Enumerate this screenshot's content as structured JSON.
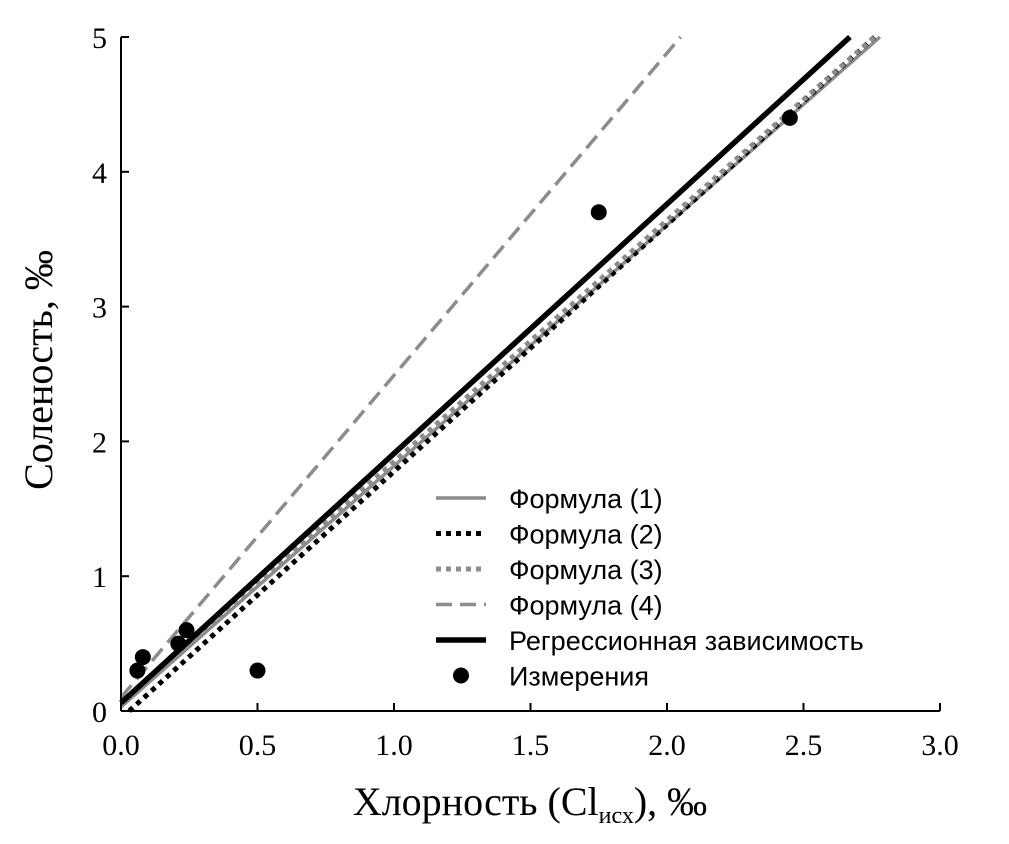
{
  "chart_data": {
    "type": "scatter",
    "xlabel_main": "Хлорность (Cl",
    "xlabel_sub": "исх",
    "xlabel_tail": "), ‰",
    "ylabel": "Соленость, ‰",
    "xlim": [
      0,
      3
    ],
    "ylim": [
      0,
      5
    ],
    "x_ticks": [
      "0.0",
      "0.5",
      "1.0",
      "1.5",
      "2.0",
      "2.5",
      "3.0"
    ],
    "y_ticks": [
      "0",
      "1",
      "2",
      "3",
      "4",
      "5"
    ],
    "legend_position": "lower-right",
    "series": [
      {
        "name": "Формула (1)",
        "kind": "line",
        "style": "solid-gray",
        "color": "#8c8c8c",
        "x": [
          0,
          2.78
        ],
        "y": [
          0.03,
          5.0
        ]
      },
      {
        "name": "Формула (2)",
        "kind": "line",
        "style": "dotted-black",
        "color": "#000000",
        "x": [
          0.03,
          2.76
        ],
        "y": [
          0.0,
          5.0
        ]
      },
      {
        "name": "Формула (3)",
        "kind": "line",
        "style": "dotted-gray",
        "color": "#8c8c8c",
        "x": [
          0,
          2.76
        ],
        "y": [
          0.06,
          5.0
        ]
      },
      {
        "name": "Формула (4)",
        "kind": "line",
        "style": "dashed-gray",
        "color": "#8c8c8c",
        "x": [
          0,
          2.05
        ],
        "y": [
          0.1,
          5.0
        ]
      },
      {
        "name": "Регрессионная зависимость",
        "kind": "line",
        "style": "solid-black-thick",
        "color": "#000000",
        "x": [
          0,
          2.67
        ],
        "y": [
          0.06,
          5.0
        ]
      },
      {
        "name": "Измерения",
        "kind": "points",
        "style": "marker-black",
        "color": "#000000",
        "x": [
          0.06,
          0.08,
          0.21,
          0.24,
          0.5,
          1.75,
          2.45
        ],
        "y": [
          0.3,
          0.4,
          0.5,
          0.6,
          0.3,
          3.7,
          4.4
        ]
      }
    ]
  }
}
